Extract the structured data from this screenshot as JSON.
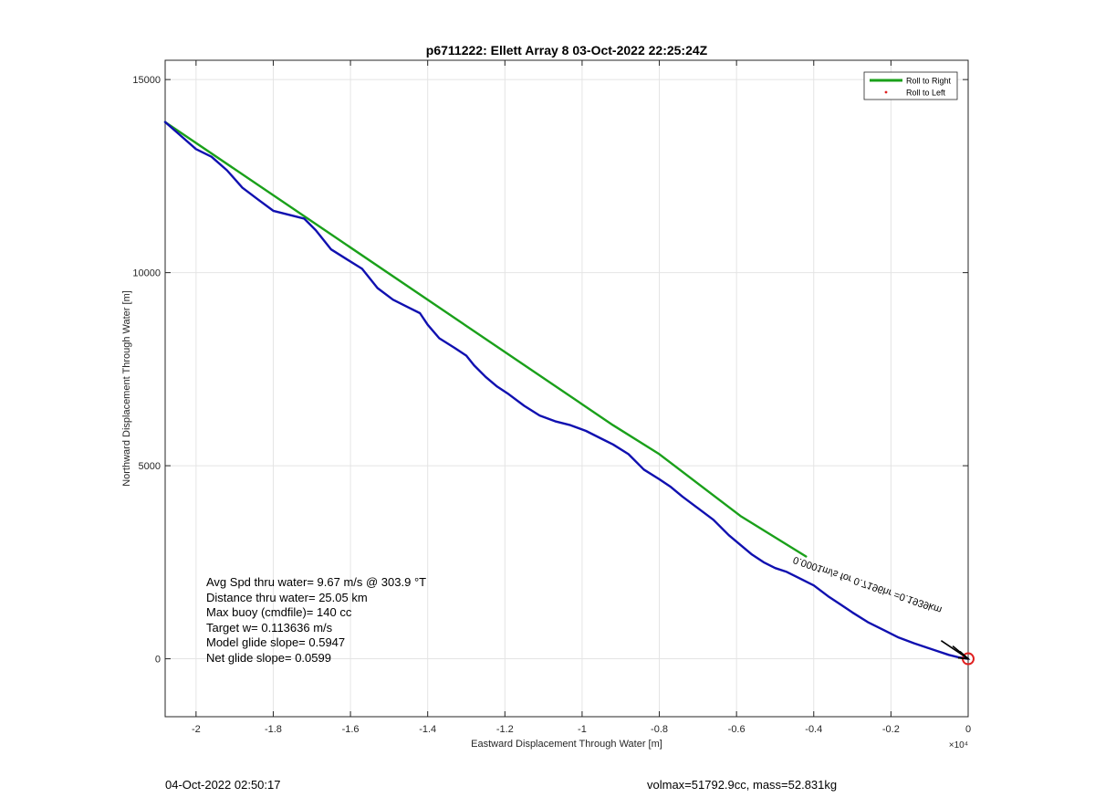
{
  "chart_data": {
    "type": "line",
    "title": "p6711222: Ellett Array 8 03-Oct-2022 22:25:24Z",
    "xlabel": "Eastward Displacement Through Water [m]",
    "ylabel": "Northward Displacement Through Water [m]",
    "x_exponent_label": "×10⁴",
    "xlim": [
      -20800,
      0
    ],
    "ylim": [
      -1500,
      15500
    ],
    "x_ticks": [
      -20000,
      -18000,
      -16000,
      -14000,
      -12000,
      -10000,
      -8000,
      -6000,
      -4000,
      -2000,
      0
    ],
    "x_tick_labels": [
      "-2",
      "-1.8",
      "-1.6",
      "-1.4",
      "-1.2",
      "-1",
      "-0.8",
      "-0.6",
      "-0.4",
      "-0.2",
      "0"
    ],
    "y_ticks": [
      0,
      5000,
      10000,
      15000
    ],
    "y_tick_labels": [
      "0",
      "5000",
      "10000",
      "15000"
    ],
    "grid": true,
    "legend_position": "top-right",
    "legend": [
      {
        "name": "Roll to Right",
        "color": "#1aa01a",
        "style": "line"
      },
      {
        "name": "Roll to Left",
        "color": "#e02020",
        "style": "dot"
      }
    ],
    "series": [
      {
        "name": "Roll to Right",
        "color": "#1aa01a",
        "x": [
          -20800,
          -9200,
          -8000,
          -5900,
          -4200
        ],
        "y": [
          13900,
          6050,
          5300,
          3700,
          2650
        ]
      },
      {
        "color": "#1010b0",
        "x": [
          -20800,
          -20400,
          -20000,
          -19600,
          -19200,
          -18800,
          -18400,
          -18000,
          -17600,
          -17200,
          -16900,
          -16500,
          -16100,
          -15700,
          -15300,
          -14900,
          -14500,
          -14200,
          -14000,
          -13700,
          -13300,
          -13000,
          -12800,
          -12500,
          -12200,
          -11900,
          -11500,
          -11100,
          -10700,
          -10300,
          -9900,
          -9500,
          -9200,
          -8800,
          -8400,
          -8000,
          -7700,
          -7400,
          -7000,
          -6600,
          -6200,
          -5900,
          -5600,
          -5300,
          -5000,
          -4700,
          -4400,
          -4000,
          -3600,
          -3300,
          -3000,
          -2600,
          -2200,
          -1800,
          -1400,
          -1100,
          -800,
          -500,
          -250,
          0
        ],
        "y": [
          13900,
          13550,
          13200,
          13000,
          12650,
          12200,
          11900,
          11600,
          11500,
          11400,
          11100,
          10600,
          10350,
          10100,
          9600,
          9300,
          9100,
          8950,
          8650,
          8300,
          8050,
          7850,
          7600,
          7300,
          7050,
          6850,
          6550,
          6300,
          6150,
          6050,
          5900,
          5700,
          5550,
          5300,
          4900,
          4650,
          4450,
          4200,
          3900,
          3600,
          3200,
          2950,
          2700,
          2500,
          2350,
          2250,
          2100,
          1900,
          1600,
          1400,
          1200,
          950,
          750,
          550,
          400,
          300,
          200,
          100,
          40,
          0
        ]
      }
    ],
    "start_marker": {
      "x": 0,
      "y": 0,
      "color": "#e02020",
      "shape": "circle"
    },
    "current_annotation": {
      "text": "0.0001m/s for 0.7196hr =0.1939km",
      "x": -4500,
      "y": 2650,
      "angle_deg": 19
    },
    "current_arrows": [
      {
        "x": -400,
        "y": 330
      },
      {
        "x": -700,
        "y": 470
      }
    ]
  },
  "stats": [
    "Avg Spd thru water=  9.67 m/s @ 303.9 °T",
    "Distance thru water= 25.05 km",
    "Max buoy (cmdfile)= 140 cc",
    "Target w= 0.113636 m/s",
    "Model glide slope= 0.5947",
    "Net glide slope= 0.0599"
  ],
  "footer": {
    "timestamp": "04-Oct-2022 02:50:17",
    "vol_mass": "volmax=51792.9cc, mass=52.831kg"
  }
}
